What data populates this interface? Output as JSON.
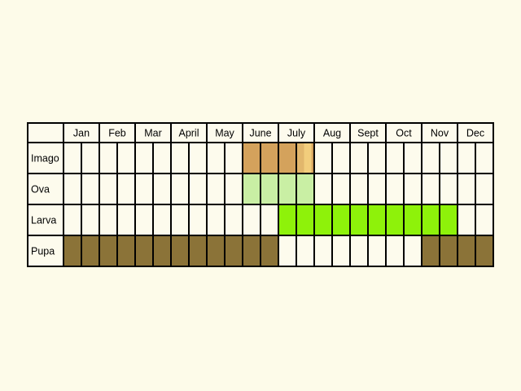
{
  "chart_data": {
    "type": "table",
    "months": [
      "Jan",
      "Feb",
      "Mar",
      "April",
      "May",
      "June",
      "July",
      "Aug",
      "Sept",
      "Oct",
      "Nov",
      "Dec"
    ],
    "periods_per_month": 2,
    "colors": {
      "background": "#fdfbe9",
      "cell_empty": "#fdfbed",
      "grid": "#000000"
    },
    "rows": [
      {
        "label": "Imago",
        "cells": [
          {
            "month": "June",
            "half": 1,
            "color": "#d4a25c"
          },
          {
            "month": "June",
            "half": 2,
            "color": "#d4a25c"
          },
          {
            "month": "July",
            "half": 1,
            "color": "#d4a25c"
          },
          {
            "month": "July",
            "half": 2,
            "color": "#d4a25c",
            "split": [
              "#e2b76c",
              "#f2cd7c"
            ]
          }
        ]
      },
      {
        "label": "Ova",
        "cells": [
          {
            "month": "June",
            "half": 1,
            "color": "#c9efa4"
          },
          {
            "month": "June",
            "half": 2,
            "color": "#c9efa4"
          },
          {
            "month": "July",
            "half": 1,
            "color": "#c9efa4"
          },
          {
            "month": "July",
            "half": 2,
            "color": "#c9efa4"
          }
        ]
      },
      {
        "label": "Larva",
        "cells": [
          {
            "month": "July",
            "half": 1,
            "color": "#8ef20a"
          },
          {
            "month": "July",
            "half": 2,
            "color": "#8ef20a"
          },
          {
            "month": "Aug",
            "half": 1,
            "color": "#8ef20a"
          },
          {
            "month": "Aug",
            "half": 2,
            "color": "#8ef20a"
          },
          {
            "month": "Sept",
            "half": 1,
            "color": "#8ef20a"
          },
          {
            "month": "Sept",
            "half": 2,
            "color": "#8ef20a"
          },
          {
            "month": "Oct",
            "half": 1,
            "color": "#8ef20a"
          },
          {
            "month": "Oct",
            "half": 2,
            "color": "#8ef20a"
          },
          {
            "month": "Nov",
            "half": 1,
            "color": "#8ef20a"
          },
          {
            "month": "Nov",
            "half": 2,
            "color": "#8ef20a"
          }
        ]
      },
      {
        "label": "Pupa",
        "cells": [
          {
            "month": "Jan",
            "half": 1,
            "color": "#8b7338"
          },
          {
            "month": "Jan",
            "half": 2,
            "color": "#8b7338"
          },
          {
            "month": "Feb",
            "half": 1,
            "color": "#8b7338"
          },
          {
            "month": "Feb",
            "half": 2,
            "color": "#8b7338"
          },
          {
            "month": "Mar",
            "half": 1,
            "color": "#8b7338"
          },
          {
            "month": "Mar",
            "half": 2,
            "color": "#8b7338"
          },
          {
            "month": "April",
            "half": 1,
            "color": "#8b7338"
          },
          {
            "month": "April",
            "half": 2,
            "color": "#8b7338"
          },
          {
            "month": "May",
            "half": 1,
            "color": "#8b7338"
          },
          {
            "month": "May",
            "half": 2,
            "color": "#8b7338"
          },
          {
            "month": "June",
            "half": 1,
            "color": "#8b7338"
          },
          {
            "month": "June",
            "half": 2,
            "color": "#8b7338"
          },
          {
            "month": "Nov",
            "half": 1,
            "color": "#8b7338"
          },
          {
            "month": "Nov",
            "half": 2,
            "color": "#8b7338"
          },
          {
            "month": "Dec",
            "half": 1,
            "color": "#8b7338"
          },
          {
            "month": "Dec",
            "half": 2,
            "color": "#8b7338"
          }
        ]
      }
    ]
  }
}
